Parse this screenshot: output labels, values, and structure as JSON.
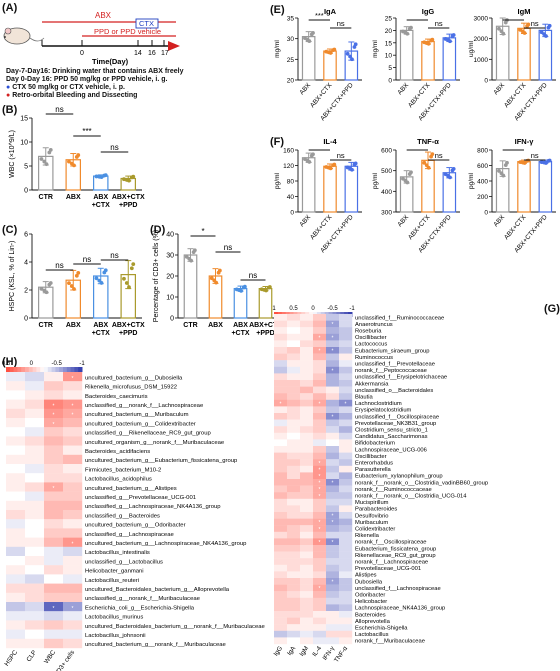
{
  "panels": {
    "A": "(A)",
    "B": "(B)",
    "C": "(C)",
    "D": "(D)",
    "E": "(E)",
    "F": "(F)",
    "G": "(G)",
    "H": "(H)"
  },
  "timeline": {
    "abx": "ABX",
    "ctx": "CTX",
    "ppd": "PPD or PPD vehicle",
    "ticks": [
      "0",
      "14",
      "16",
      "17"
    ],
    "axis_label": "Time(Day)",
    "notes": [
      "Day-7-Day16: Drinking water that contains ABX freely",
      "Day 0-Day 16: PPD 50 mg/kg or PPD vehicle, i. g.",
      "CTX 50 mg/kg or CTX vehicle, i. p.",
      "Retro-orbital Bleeding and Dissecting"
    ]
  },
  "sig": {
    "ns": "ns",
    "s1": "*",
    "s3": "***"
  },
  "chart_data": [
    {
      "id": "B",
      "type": "bar",
      "categories": [
        "CTR",
        "ABX",
        "ABX +CTX",
        "ABX+CTX +PPD"
      ],
      "values": [
        7.0,
        6.3,
        2.9,
        2.4
      ],
      "errors": [
        1.8,
        1.3,
        0.25,
        0.5
      ],
      "ylabel": "WBC (×10^9/L)",
      "ylim": [
        0,
        15
      ],
      "yticks": [
        "0",
        "5",
        "10",
        "15"
      ],
      "significance": [
        "ns",
        "***",
        "ns"
      ],
      "colors": [
        "#9a9a9a",
        "#f08a2c",
        "#4a90e2",
        "#a99a2c"
      ]
    },
    {
      "id": "C",
      "type": "bar",
      "categories": [
        "CTR",
        "ABX",
        "ABX +CTX",
        "ABX+CTX +PPD"
      ],
      "values": [
        2.2,
        2.7,
        3.0,
        3.1
      ],
      "errors": [
        0.4,
        0.7,
        0.55,
        1.0
      ],
      "ylabel": "HSPC (KSL, % of Lin-)",
      "ylim": [
        0,
        6
      ],
      "yticks": [
        "0",
        "2",
        "4",
        "6"
      ],
      "significance": [
        "ns",
        "ns",
        "ns"
      ],
      "colors": [
        "#9a9a9a",
        "#f08a2c",
        "#4a90e2",
        "#a99a2c"
      ]
    },
    {
      "id": "D",
      "type": "bar",
      "categories": [
        "CTR",
        "ABX",
        "ABX +CTX",
        "ABX+CTX +PPD"
      ],
      "values": [
        30,
        20,
        14,
        14
      ],
      "errors": [
        3,
        3.5,
        1.2,
        1
      ],
      "ylabel": "Percentage of CD3+ cells (%)",
      "ylim": [
        0,
        40
      ],
      "yticks": [
        "0",
        "10",
        "20",
        "30",
        "40"
      ],
      "significance": [
        "*",
        "ns",
        "ns"
      ],
      "colors": [
        "#9a9a9a",
        "#f08a2c",
        "#4a90e2",
        "#a99a2c"
      ]
    },
    {
      "id": "E1",
      "type": "bar",
      "title": "IgA",
      "ylabel": "mg/ml",
      "categories": [
        "ABX",
        "ABX+CTX",
        "ABX+CTX+PPD"
      ],
      "values": [
        30.5,
        27,
        27
      ],
      "errors": [
        1.2,
        0.5,
        2.2
      ],
      "ylim": [
        20,
        35
      ],
      "yticks": [
        "20",
        "25",
        "30",
        "35"
      ],
      "significance": [
        "***",
        "ns"
      ],
      "colors": [
        "#9a9a9a",
        "#f08a2c",
        "#4a70e6"
      ]
    },
    {
      "id": "E2",
      "type": "bar",
      "title": "IgG",
      "ylabel": "mg/ml",
      "categories": [
        "ABX",
        "ABX+CTX",
        "ABX+CTX+PPD"
      ],
      "values": [
        20,
        15.5,
        17
      ],
      "errors": [
        1.5,
        1.0,
        1.5
      ],
      "ylim": [
        0,
        25
      ],
      "yticks": [
        "0",
        "5",
        "10",
        "15",
        "20",
        "25"
      ],
      "significance": [
        "",
        "ns"
      ],
      "colors": [
        "#9a9a9a",
        "#f08a2c",
        "#4a70e6"
      ]
    },
    {
      "id": "E3",
      "type": "bar",
      "title": "IgM",
      "ylabel": "ug/ml",
      "categories": [
        "ABX",
        "ABX+CTX",
        "ABX+CTX+PPD"
      ],
      "values": [
        2600,
        2500,
        2400
      ],
      "errors": [
        400,
        250,
        300
      ],
      "ylim": [
        0,
        3000
      ],
      "yticks": [
        "0",
        "1000",
        "2000",
        "3000"
      ],
      "significance": [
        "",
        "ns"
      ],
      "colors": [
        "#9a9a9a",
        "#f08a2c",
        "#4a70e6"
      ]
    },
    {
      "id": "F1",
      "type": "bar",
      "title": "IL-4",
      "ylabel": "pg/ml",
      "categories": [
        "ABX",
        "ABX+CTX",
        "ABX+CTX+PPD"
      ],
      "values": [
        140,
        118,
        118
      ],
      "errors": [
        12,
        6,
        10
      ],
      "ylim": [
        0,
        160
      ],
      "yticks": [
        "0",
        "40",
        "80",
        "120",
        "160"
      ],
      "significance": [
        "",
        "ns"
      ],
      "colors": [
        "#9a9a9a",
        "#f08a2c",
        "#4a70e6"
      ]
    },
    {
      "id": "F2",
      "type": "bar",
      "title": "TNF-α",
      "ylabel": "pg/ml",
      "categories": [
        "ABX",
        "ABX+CTX",
        "ABX+CTX+PPD"
      ],
      "values": [
        470,
        550,
        490
      ],
      "errors": [
        30,
        40,
        25
      ],
      "ylim": [
        300,
        600
      ],
      "yticks": [
        "300",
        "400",
        "500",
        "600"
      ],
      "significance": [
        "",
        "ns"
      ],
      "colors": [
        "#9a9a9a",
        "#f08a2c",
        "#4a70e6"
      ]
    },
    {
      "id": "F3",
      "type": "bar",
      "title": "IFN-γ",
      "ylabel": "pg/ml",
      "categories": [
        "ABX",
        "ABX+CTX",
        "ABX+CTX+PPD"
      ],
      "values": [
        560,
        650,
        650
      ],
      "errors": [
        100,
        20,
        20
      ],
      "ylim": [
        0,
        800
      ],
      "yticks": [
        "0",
        "200",
        "400",
        "600",
        "800"
      ],
      "significance": [
        "",
        "ns"
      ],
      "colors": [
        "#9a9a9a",
        "#f08a2c",
        "#4a70e6"
      ]
    },
    {
      "id": "G",
      "type": "heatmap",
      "scale_ticks": [
        "1",
        "0.5",
        "0",
        "-0.5",
        "-1"
      ],
      "columns": [
        "IgG",
        "IgA",
        "IgM",
        "IL-4",
        "IFN-γ",
        "TNF-α"
      ],
      "rows": [
        "unclassified_f__Ruminococcaceae",
        "Anaerotruncus",
        "Roseburia",
        "Oscillibacter",
        "Lactococcus",
        "Eubacterium_siraeum_group",
        "Ruminococcus",
        "unclassified_f__Prevotellaceae",
        "norank_f__Peptococcaceae",
        "unclassified_f__Erysipelotrichaceae",
        "Akkermansia",
        "unclassified_o__Bacteroidales",
        "Blautia",
        "Lachnoclostridium",
        "Erysipelatoclostridium",
        "unclassified_f__Oscillospiraceae",
        "Prevotellaceae_NK3B31_group",
        "Clostridium_sensu_stricto_1",
        "Candidatus_Saccharimonas",
        "Bifidobacterium",
        "Lachnospiraceae_UCG-006",
        "Oscillibacter",
        "Enterorhabdus",
        "Parasutterella",
        "Eubacterium_xylanophilum_group",
        "norank_f__norank_o__Clostridia_vadinBB60_group",
        "norank_f__Ruminococcaceae",
        "norank_f__norank_o__Clostridia_UCG-014",
        "Mucispirillum",
        "Parabacteroides",
        "Desulfovibrio",
        "Muribaculum",
        "Colidextribacter",
        "Rikenella",
        "norank_f__Oscillospiraceae",
        "Eubacterium_fissicatena_group",
        "Rikenellaceae_RC9_gut_group",
        "norank_f__Lachnospiraceae",
        "Prevotellaceae_UCG-001",
        "Alistipes",
        "Dubosiella",
        "unclassified_f__Lachnospiraceae",
        "Odoribacter",
        "Helicobacter",
        "Lachnospiraceae_NK4A136_group",
        "Bacteroides",
        "Alloprevotella",
        "Escherichia-Shigella",
        "Lactobacillus",
        "norank_f__Muribaculaceae"
      ],
      "values": [
        [
          0.1,
          0.2,
          0.1,
          0.3,
          -0.3,
          -0.2
        ],
        [
          0.2,
          0.1,
          0.2,
          0.4,
          -0.5,
          -0.2
        ],
        [
          0.1,
          0.0,
          0.1,
          0.3,
          -0.4,
          -0.3
        ],
        [
          0.2,
          0.1,
          0.1,
          0.5,
          -0.5,
          -0.3
        ],
        [
          0.1,
          0.0,
          0.2,
          0.3,
          -0.3,
          -0.2
        ],
        [
          0.2,
          0.3,
          0.1,
          0.5,
          -0.6,
          -0.3
        ],
        [
          0.3,
          0.2,
          0.1,
          0.4,
          -0.3,
          0.1
        ],
        [
          -0.2,
          0.1,
          0.1,
          0.2,
          -0.4,
          -0.1
        ],
        [
          -0.3,
          -0.1,
          0.1,
          0.2,
          -0.6,
          -0.3
        ],
        [
          0.2,
          0.1,
          0.1,
          0.3,
          -0.4,
          -0.2
        ],
        [
          0.3,
          0.3,
          0.2,
          0.4,
          -0.4,
          -0.3
        ],
        [
          0.3,
          0.3,
          0.4,
          0.2,
          0.1,
          -0.2
        ],
        [
          0.4,
          0.3,
          0.2,
          0.4,
          0.2,
          -0.3
        ],
        [
          0.5,
          0.4,
          0.3,
          0.5,
          -0.4,
          -0.6
        ],
        [
          0.1,
          0.2,
          0.1,
          0.3,
          -0.3,
          -0.2
        ],
        [
          0.3,
          0.2,
          0.1,
          0.4,
          -0.6,
          -0.4
        ],
        [
          -0.1,
          0.1,
          0.1,
          0.3,
          -0.3,
          -0.2
        ],
        [
          0.2,
          0.1,
          0.2,
          0.3,
          -0.2,
          -0.4
        ],
        [
          0.1,
          0.0,
          0.1,
          0.2,
          0.1,
          -0.2
        ],
        [
          0.0,
          0.1,
          0.1,
          -0.1,
          0.0,
          0.1
        ],
        [
          0.1,
          0.1,
          0.1,
          0.3,
          -0.3,
          0.1
        ],
        [
          0.3,
          0.2,
          0.2,
          0.4,
          -0.4,
          -0.2
        ],
        [
          0.3,
          0.3,
          0.2,
          0.5,
          -0.2,
          -0.3
        ],
        [
          0.3,
          0.2,
          0.1,
          0.6,
          -0.3,
          0.1
        ],
        [
          0.4,
          0.2,
          0.4,
          0.6,
          -0.2,
          -0.4
        ],
        [
          0.4,
          0.4,
          0.4,
          0.5,
          -0.6,
          -0.3
        ],
        [
          0.3,
          0.4,
          0.3,
          0.5,
          -0.4,
          -0.2
        ],
        [
          0.4,
          0.3,
          0.3,
          0.5,
          -0.3,
          -0.3
        ],
        [
          0.2,
          0.1,
          0.1,
          0.3,
          -0.2,
          -0.2
        ],
        [
          0.2,
          0.2,
          0.1,
          0.3,
          -0.3,
          0.1
        ],
        [
          0.3,
          0.2,
          0.2,
          0.4,
          -0.5,
          -0.2
        ],
        [
          0.4,
          0.4,
          0.4,
          0.5,
          -0.5,
          -0.4
        ],
        [
          0.4,
          0.3,
          0.2,
          0.5,
          -0.4,
          -0.3
        ],
        [
          0.2,
          0.3,
          0.1,
          0.4,
          -0.2,
          -0.2
        ],
        [
          0.4,
          0.4,
          0.3,
          0.6,
          -0.6,
          -0.2
        ],
        [
          0.3,
          0.3,
          0.2,
          0.4,
          -0.3,
          -0.2
        ],
        [
          0.2,
          0.2,
          0.1,
          0.4,
          -0.3,
          -0.2
        ],
        [
          0.2,
          0.2,
          0.2,
          0.3,
          -0.2,
          -0.2
        ],
        [
          0.1,
          0.2,
          0.1,
          0.3,
          -0.3,
          -0.2
        ],
        [
          0.2,
          0.1,
          0.1,
          0.2,
          -0.4,
          -0.1
        ],
        [
          0.3,
          0.3,
          0.2,
          0.4,
          -0.5,
          -0.3
        ],
        [
          0.4,
          0.3,
          0.2,
          0.5,
          -0.4,
          -0.3
        ],
        [
          0.3,
          0.2,
          0.1,
          0.4,
          -0.3,
          -0.2
        ],
        [
          0.3,
          0.3,
          0.2,
          0.3,
          -0.2,
          -0.2
        ],
        [
          0.3,
          0.3,
          0.2,
          0.3,
          -0.4,
          -0.3
        ],
        [
          0.2,
          0.2,
          0.2,
          0.1,
          0.1,
          -0.1
        ],
        [
          0.2,
          0.3,
          0.1,
          0.2,
          0.1,
          0.1
        ],
        [
          0.2,
          0.1,
          0.1,
          0.1,
          -0.1,
          -0.1
        ],
        [
          -0.3,
          -0.2,
          -0.1,
          -0.2,
          0.2,
          0.2
        ],
        [
          0.1,
          0.0,
          0.1,
          -0.1,
          -0.1,
          0.1
        ]
      ]
    },
    {
      "id": "H",
      "type": "heatmap",
      "scale_ticks": [
        "0.5",
        "0",
        "-0.5",
        "-1"
      ],
      "columns": [
        "HSPC",
        "CLP",
        "WBC",
        "CD3+ cells"
      ],
      "rows": [
        "uncultured_bacterium_g__Dubosiella",
        "Rikenella_microfusus_DSM_15922",
        "Bacteroides_caecimuris",
        "unclassified_g__norank_f__Lachnospiraceae",
        "uncultured_bacterium_g__Muribaculum",
        "uncultured_bacterium_g__Colidextribacter",
        "unclassified_g__Rikenellaceae_RC9_gut_group",
        "uncultured_organism_g__norank_f__Muribaculaceae",
        "Bacteroides_acidifaciens",
        "uncultured_bacterium_g__Eubacterium_fissicatena_group",
        "Firmicutes_bacterium_M10-2",
        "Lactobacillus_acidophilus",
        "uncultured_bacterium_g__Alistipes",
        "unclassified_g__Prevotellaceae_UCG-001",
        "unclassified_g__Lachnospiraceae_NK4A136_group",
        "unclassified_g__Bacteroides",
        "uncultured_bacterium_g__Odoribacter",
        "unclassified_g__Lachnospiraceae",
        "uncultured_bacterium_g__Lachnospiraceae_NK4A136_group",
        "Lactobacillus_intestinalis",
        "unclassified_g__Lactobacillus",
        "Helicobacter_ganmani",
        "Lactobacillus_reuteri",
        "uncultured_Bacteroidales_bacterium_g__Alloprevotella",
        "unclassified_g__norank_f__Muribaculaceae",
        "Escherichia_coli_g__Escherichia-Shigella",
        "Lactobacillus_murinus",
        "uncultured_Bacteroidales_bacterium_g__norank_f__Muribaculaceae",
        "Lactobacillus_johnsonii",
        "uncultured_bacterium_g__norank_f__Muribaculaceae"
      ],
      "values": [
        [
          -0.1,
          -0.2,
          0.1,
          0.6
        ],
        [
          0.1,
          -0.1,
          0.3,
          0.2
        ],
        [
          0.0,
          0.1,
          0.2,
          0.1
        ],
        [
          0.1,
          0.2,
          0.7,
          0.6
        ],
        [
          0.2,
          0.1,
          0.6,
          0.5
        ],
        [
          0.1,
          0.0,
          0.5,
          0.4
        ],
        [
          0.0,
          -0.1,
          0.3,
          0.2
        ],
        [
          0.1,
          0.2,
          0.4,
          0.3
        ],
        [
          0.0,
          0.1,
          0.3,
          0.1
        ],
        [
          0.1,
          0.1,
          0.3,
          0.4
        ],
        [
          0.0,
          -0.1,
          0.2,
          0.1
        ],
        [
          0.1,
          0.0,
          0.2,
          0.2
        ],
        [
          0.1,
          0.2,
          0.5,
          0.3
        ],
        [
          0.0,
          -0.1,
          0.3,
          0.3
        ],
        [
          0.1,
          0.1,
          0.4,
          0.4
        ],
        [
          0.2,
          0.1,
          0.4,
          0.3
        ],
        [
          -0.1,
          0.0,
          0.2,
          0.1
        ],
        [
          0.1,
          0.0,
          0.3,
          0.3
        ],
        [
          0.1,
          0.1,
          0.4,
          0.6
        ],
        [
          -0.2,
          0.0,
          -0.1,
          -0.2
        ],
        [
          0.0,
          0.1,
          -0.1,
          0.1
        ],
        [
          0.1,
          0.0,
          0.2,
          0.1
        ],
        [
          -0.1,
          -0.2,
          0.0,
          -0.1
        ],
        [
          0.2,
          0.2,
          0.4,
          0.4
        ],
        [
          0.1,
          0.2,
          0.3,
          0.3
        ],
        [
          -0.3,
          -0.2,
          -0.8,
          -0.5
        ],
        [
          -0.1,
          -0.1,
          -0.2,
          -0.1
        ],
        [
          0.1,
          0.2,
          0.3,
          0.2
        ],
        [
          -0.1,
          0.0,
          -0.1,
          -0.1
        ],
        [
          0.1,
          0.1,
          0.3,
          0.2
        ]
      ]
    }
  ]
}
